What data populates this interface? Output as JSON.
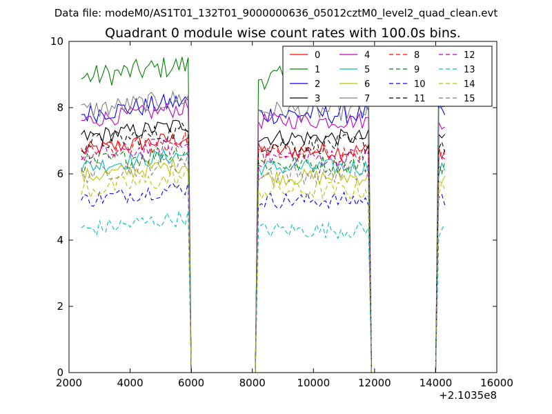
{
  "header": {
    "file_label": "Data file: modeM0/AS1T01_132T01_9000000636_05012cztM0_level2_quad_clean.evt",
    "title": "Quadrant 0 module wise count rates with 100.0s bins."
  },
  "chart_data": {
    "type": "line",
    "x_offset_label": "+2.1035e8",
    "xlim": [
      2000,
      16000
    ],
    "ylim": [
      0,
      10
    ],
    "x_ticks": [
      2000,
      4000,
      6000,
      8000,
      10000,
      12000,
      14000,
      16000
    ],
    "x_tick_labels": [
      "2000",
      "4000",
      "6000",
      "8000",
      "10000",
      "12000",
      "14000",
      "16000"
    ],
    "y_ticks": [
      0,
      2,
      4,
      6,
      8,
      10
    ],
    "y_tick_labels": [
      "0",
      "2",
      "4",
      "6",
      "8",
      "10"
    ],
    "grid": false,
    "legend_position": "top-right",
    "segments": [
      {
        "x_start": 2400,
        "x_end": 5900,
        "step": 100
      },
      {
        "x_start": 8200,
        "x_end": 11800,
        "step": 100
      },
      {
        "x_start": 14100,
        "x_end": 14300,
        "step": 100
      }
    ],
    "series": [
      {
        "name": "0",
        "color": "#ff0000",
        "dash": "solid",
        "level": 6.7,
        "noise": 0.25
      },
      {
        "name": "1",
        "color": "#008000",
        "dash": "solid",
        "level": 8.9,
        "noise": 0.35
      },
      {
        "name": "2",
        "color": "#0000ff",
        "dash": "solid",
        "level": 7.8,
        "noise": 0.3
      },
      {
        "name": "3",
        "color": "#000000",
        "dash": "solid",
        "level": 7.1,
        "noise": 0.25
      },
      {
        "name": "4",
        "color": "#bf00bf",
        "dash": "solid",
        "level": 7.6,
        "noise": 0.25
      },
      {
        "name": "5",
        "color": "#00bfbf",
        "dash": "solid",
        "level": 6.2,
        "noise": 0.25
      },
      {
        "name": "6",
        "color": "#bfbf00",
        "dash": "solid",
        "level": 5.9,
        "noise": 0.25
      },
      {
        "name": "7",
        "color": "#808080",
        "dash": "solid",
        "level": 7.9,
        "noise": 0.3
      },
      {
        "name": "8",
        "color": "#ff0000",
        "dash": "dashed",
        "level": 6.6,
        "noise": 0.3
      },
      {
        "name": "9",
        "color": "#008000",
        "dash": "dashed",
        "level": 6.3,
        "noise": 0.3
      },
      {
        "name": "10",
        "color": "#0000ff",
        "dash": "dashed",
        "level": 5.2,
        "noise": 0.25
      },
      {
        "name": "11",
        "color": "#000000",
        "dash": "dashed",
        "level": 6.9,
        "noise": 0.3
      },
      {
        "name": "12",
        "color": "#bf00bf",
        "dash": "dashed",
        "level": 6.5,
        "noise": 0.3
      },
      {
        "name": "13",
        "color": "#00bfbf",
        "dash": "dashed",
        "level": 4.3,
        "noise": 0.25
      },
      {
        "name": "14",
        "color": "#bfbf00",
        "dash": "dashed",
        "level": 5.5,
        "noise": 0.3
      },
      {
        "name": "15",
        "color": "#808080",
        "dash": "dashed",
        "level": 6.0,
        "noise": 0.3
      }
    ]
  }
}
